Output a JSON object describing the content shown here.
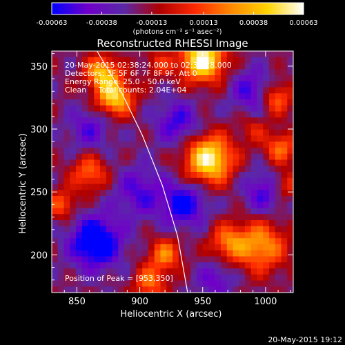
{
  "chart_data": {
    "type": "heatmap",
    "title": "Reconstructed RHESSI Image",
    "xlabel": "Heliocentric X (arcsec)",
    "ylabel": "Heliocentric Y (arcsec)",
    "xlim": [
      830,
      1022
    ],
    "ylim": [
      170,
      362
    ],
    "x_ticks": [
      850,
      900,
      950,
      1000
    ],
    "y_ticks": [
      200,
      250,
      300,
      350
    ],
    "grid": false,
    "colorbar": {
      "title": "(photons cm⁻² s⁻¹ asec⁻²)",
      "min": -0.00063,
      "max": 0.00063,
      "ticks": [
        {
          "value": -0.00063,
          "label": "-0.00063"
        },
        {
          "value": -0.00038,
          "label": "-0.00038"
        },
        {
          "value": -0.00013,
          "label": "-0.00013"
        },
        {
          "value": 0.00013,
          "label": "0.00013"
        },
        {
          "value": 0.00038,
          "label": "0.00038"
        },
        {
          "value": 0.00063,
          "label": "0.00063"
        }
      ],
      "colormap": [
        "#0000ff",
        "#7000c8",
        "#5a28a8",
        "#b00000",
        "#ff2a00",
        "#ff8a00",
        "#ffd400",
        "#ffffff"
      ]
    },
    "annotations": [
      "20-May-2015 02:38:24.000 to 02:38:28.000",
      "Detectors: 3F 5F 6F 7F 8F 9F, Att 0",
      "Energy Range: 25.0 - 50.0 keV",
      "Clean     Total counts: 2.04E+04"
    ],
    "peak_label": "Position of Peak = [953,350]",
    "peak": {
      "x": 953,
      "y": 350
    },
    "sources": [
      {
        "x": 955,
        "y": 276,
        "amp": 1.0,
        "sigma": 13
      },
      {
        "x": 950,
        "y": 355,
        "amp": 1.05,
        "sigma": 12
      },
      {
        "x": 880,
        "y": 325,
        "amp": 0.85,
        "sigma": 10
      },
      {
        "x": 870,
        "y": 345,
        "amp": 0.75,
        "sigma": 9
      },
      {
        "x": 996,
        "y": 207,
        "amp": 0.65,
        "sigma": 14
      },
      {
        "x": 970,
        "y": 210,
        "amp": 0.5,
        "sigma": 10
      },
      {
        "x": 920,
        "y": 200,
        "amp": 0.55,
        "sigma": 9
      },
      {
        "x": 908,
        "y": 178,
        "amp": 0.5,
        "sigma": 9
      },
      {
        "x": 860,
        "y": 265,
        "amp": 0.5,
        "sigma": 10
      },
      {
        "x": 838,
        "y": 240,
        "amp": 0.45,
        "sigma": 8
      },
      {
        "x": 1008,
        "y": 325,
        "amp": 0.55,
        "sigma": 9
      },
      {
        "x": 1012,
        "y": 285,
        "amp": 0.5,
        "sigma": 9
      },
      {
        "x": 1015,
        "y": 255,
        "amp": 0.45,
        "sigma": 8
      },
      {
        "x": 990,
        "y": 300,
        "amp": 0.25,
        "sigma": 8
      },
      {
        "x": 915,
        "y": 352,
        "amp": 0.3,
        "sigma": 8
      },
      {
        "x": 865,
        "y": 210,
        "amp": -0.8,
        "sigma": 14
      },
      {
        "x": 935,
        "y": 240,
        "amp": -0.6,
        "sigma": 12
      },
      {
        "x": 930,
        "y": 305,
        "amp": -0.45,
        "sigma": 12
      },
      {
        "x": 990,
        "y": 330,
        "amp": -0.45,
        "sigma": 12
      },
      {
        "x": 900,
        "y": 250,
        "amp": -0.4,
        "sigma": 14
      },
      {
        "x": 1000,
        "y": 250,
        "amp": -0.45,
        "sigma": 12
      },
      {
        "x": 860,
        "y": 300,
        "amp": -0.35,
        "sigma": 12
      },
      {
        "x": 960,
        "y": 180,
        "amp": -0.35,
        "sigma": 10
      }
    ],
    "limb_curve": [
      [
        866,
        370
      ],
      [
        885,
        330
      ],
      [
        902,
        295
      ],
      [
        918,
        255
      ],
      [
        930,
        215
      ],
      [
        938,
        170
      ]
    ]
  },
  "footer": {
    "timestamp": "20-May-2015 19:12"
  }
}
